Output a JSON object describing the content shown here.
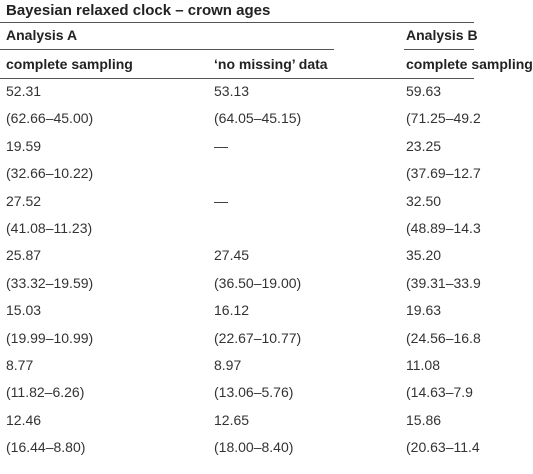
{
  "table": {
    "title": "Bayesian relaxed clock – crown ages",
    "group_headers": [
      "Analysis A",
      "Analysis B"
    ],
    "column_headers": [
      "complete sampling",
      "‘no missing’ data",
      "complete sampling"
    ],
    "rows": [
      [
        "52.31",
        "53.13",
        "59.63"
      ],
      [
        "(62.66–45.00)",
        "(64.05–45.15)",
        "(71.25–49.2"
      ],
      [
        "19.59",
        "—",
        "23.25"
      ],
      [
        "(32.66–10.22)",
        "",
        "(37.69–12.7"
      ],
      [
        "27.52",
        "—",
        "32.50"
      ],
      [
        "(41.08–11.23)",
        "",
        "(48.89–14.3"
      ],
      [
        "25.87",
        "27.45",
        "35.20"
      ],
      [
        "(33.32–19.59)",
        "(36.50–19.00)",
        "(39.31–33.9"
      ],
      [
        "15.03",
        "16.12",
        "19.63"
      ],
      [
        "(19.99–10.99)",
        "(22.67–10.77)",
        "(24.56–16.8"
      ],
      [
        "8.77",
        "8.97",
        "11.08"
      ],
      [
        "(11.82–6.26)",
        "(13.06–5.76)",
        "(14.63–7.9"
      ],
      [
        "12.46",
        "12.65",
        "15.86"
      ],
      [
        "(16.44–8.80)",
        "(18.00–8.40)",
        "(20.63–11.4"
      ]
    ]
  }
}
